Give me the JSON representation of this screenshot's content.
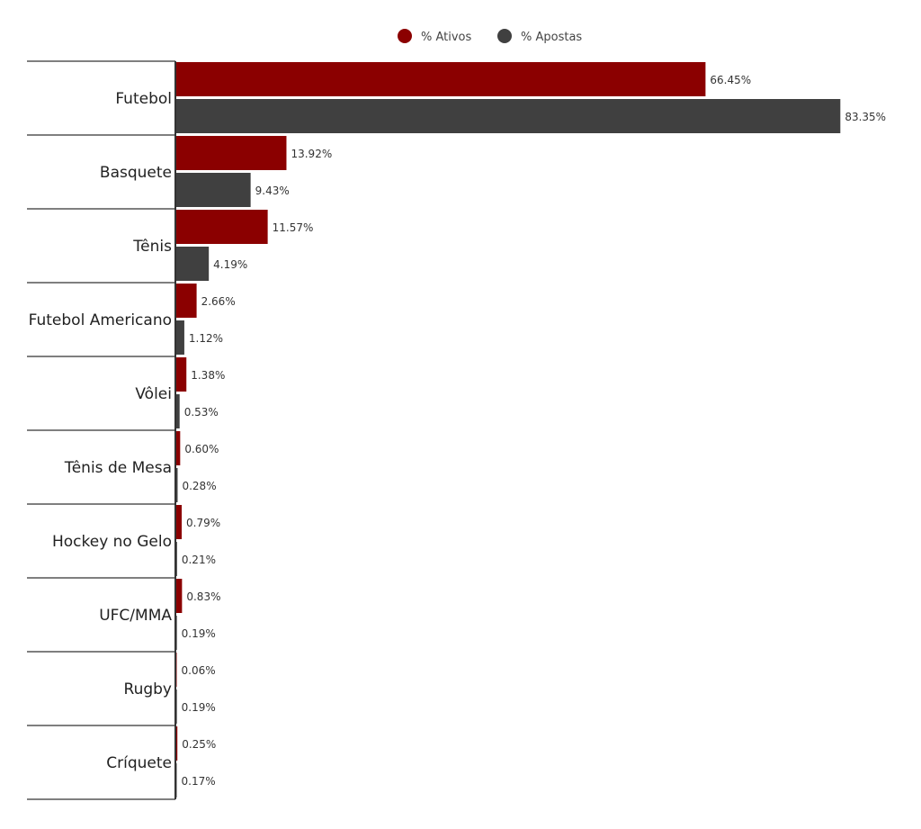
{
  "chart_data": {
    "type": "bar",
    "orientation": "horizontal",
    "categories": [
      "Futebol",
      "Basquete",
      "Tênis",
      "Futebol Americano",
      "Vôlei",
      "Tênis de Mesa",
      "Hockey no Gelo",
      "UFC/MMA",
      "Rugby",
      "Críquete"
    ],
    "series": [
      {
        "name": "% Ativos",
        "color": "#8b0000",
        "values": [
          66.45,
          13.92,
          11.57,
          2.66,
          1.38,
          0.6,
          0.79,
          0.83,
          0.06,
          0.25
        ],
        "labels": [
          "66.45%",
          "13.92%",
          "11.57%",
          "2.66%",
          "1.38%",
          "0.60%",
          "0.79%",
          "0.83%",
          "0.06%",
          "0.25%"
        ]
      },
      {
        "name": "% Apostas",
        "color": "#404040",
        "values": [
          83.35,
          9.43,
          4.19,
          1.12,
          0.53,
          0.28,
          0.21,
          0.19,
          0.19,
          0.17
        ],
        "labels": [
          "83.35%",
          "9.43%",
          "4.19%",
          "1.12%",
          "0.53%",
          "0.28%",
          "0.21%",
          "0.19%",
          "0.19%",
          "0.17%"
        ]
      }
    ],
    "xlim": [
      0,
      100
    ],
    "grid": false,
    "legend_position": "top-center"
  }
}
